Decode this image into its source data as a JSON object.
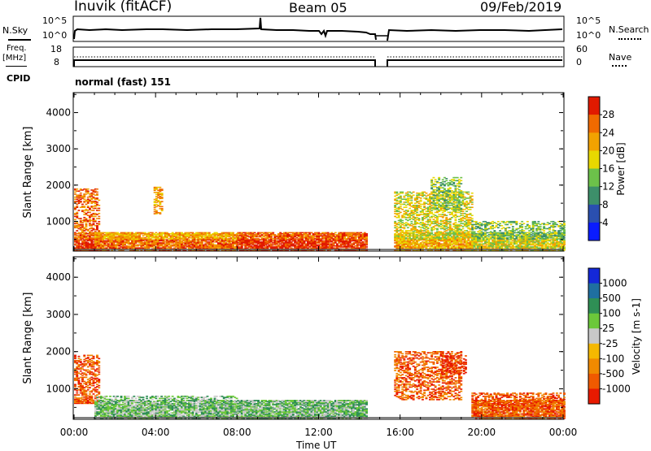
{
  "header": {
    "station": "Inuvik (fitACF)",
    "beam": "Beam 05",
    "date": "09/Feb/2019"
  },
  "strip_panel": {
    "nsky_label": "N.Sky",
    "nsky_tick_hi": "10^5",
    "nsky_tick_lo": "10^0",
    "nsearch_label": "N.Search",
    "nsearch_tick_hi": "10^5",
    "nsearch_tick_lo": "10^0",
    "freq_label": "Freq.",
    "freq_unit": "[MHz]",
    "freq_tick_hi": "18",
    "freq_tick_lo": "8",
    "nave_label": "Nave",
    "nave_tick_hi": "60",
    "nave_tick_lo": "0",
    "cpid_label": "CPID",
    "cpid_value": "normal (fast) 151"
  },
  "chart_data": [
    {
      "type": "heatmap",
      "parameter": "power",
      "ylabel": "Slant Range [km]",
      "ylim": [
        180,
        4550
      ],
      "yticks": [
        "1000",
        "2000",
        "3000",
        "4000"
      ],
      "x_range_hours": [
        0,
        24
      ],
      "colorbar": {
        "label": "Power [dB]",
        "ticks": [
          "4",
          "8",
          "12",
          "16",
          "20",
          "24",
          "28"
        ],
        "colors": [
          "#0a1cff",
          "#2a4fb0",
          "#3d8f6a",
          "#6cc14a",
          "#e8d800",
          "#f2a200",
          "#f06a00",
          "#e11a00"
        ]
      },
      "data_gap_hours": [
        14.8,
        15.55
      ],
      "echo_regions": [
        {
          "t0": 0.0,
          "t1": 1.2,
          "r0": 200,
          "r1": 1900,
          "value": 26
        },
        {
          "t0": 1.0,
          "t1": 8.0,
          "r0": 200,
          "r1": 700,
          "value": 20
        },
        {
          "t0": 3.9,
          "t1": 4.3,
          "r0": 1200,
          "r1": 1950,
          "value": 20
        },
        {
          "t0": 8.0,
          "t1": 14.3,
          "r0": 200,
          "r1": 700,
          "value": 24
        },
        {
          "t0": 15.7,
          "t1": 19.5,
          "r0": 200,
          "r1": 1800,
          "value": 16
        },
        {
          "t0": 17.5,
          "t1": 19.0,
          "r0": 1300,
          "r1": 2200,
          "value": 12
        },
        {
          "t0": 19.5,
          "t1": 24.0,
          "r0": 200,
          "r1": 1000,
          "value": 12
        }
      ]
    },
    {
      "type": "heatmap",
      "parameter": "velocity",
      "ylabel": "Slant Range [km]",
      "ylim": [
        180,
        4550
      ],
      "yticks": [
        "1000",
        "2000",
        "3000",
        "4000"
      ],
      "x_range_hours": [
        0,
        24
      ],
      "colorbar": {
        "label": "Velocity [m s-1]",
        "ticks": [
          "1000",
          "500",
          "100",
          "25",
          "-25",
          "-100",
          "-500",
          "-1000"
        ],
        "colors": [
          "#1428d8",
          "#1f6fa0",
          "#2f8f55",
          "#6cc83a",
          "#c8c8c8",
          "#f5b800",
          "#f08a00",
          "#f05a00",
          "#e81a00"
        ]
      },
      "data_gap_hours": [
        14.8,
        15.55
      ],
      "echo_regions": [
        {
          "t0": 0.0,
          "t1": 1.2,
          "r0": 600,
          "r1": 1900,
          "value": -300
        },
        {
          "t0": 1.0,
          "t1": 8.0,
          "r0": 200,
          "r1": 800,
          "value": 50
        },
        {
          "t0": 8.0,
          "t1": 14.3,
          "r0": 200,
          "r1": 700,
          "value": 100
        },
        {
          "t0": 15.7,
          "t1": 19.0,
          "r0": 700,
          "r1": 2000,
          "value": -400
        },
        {
          "t0": 18.0,
          "t1": 19.2,
          "r0": 1400,
          "r1": 1900,
          "value": -600
        },
        {
          "t0": 19.5,
          "t1": 24.0,
          "r0": 200,
          "r1": 900,
          "value": -150
        }
      ]
    }
  ],
  "x_axis": {
    "label": "Time UT",
    "ticks": [
      "00:00",
      "04:00",
      "08:00",
      "12:00",
      "16:00",
      "20:00",
      "00:00"
    ]
  }
}
